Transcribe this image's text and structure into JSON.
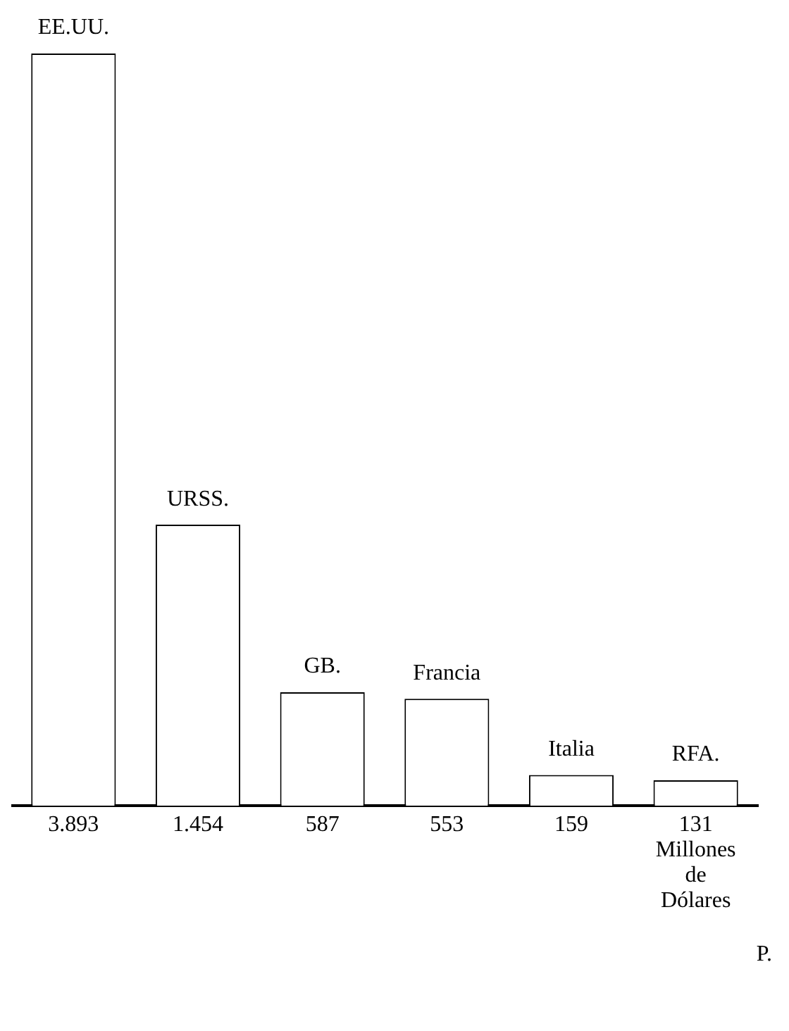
{
  "chart_data": {
    "type": "bar",
    "categories": [
      "EE.UU.",
      "URSS.",
      "GB.",
      "Francia",
      "Italia",
      "RFA."
    ],
    "values": [
      3893,
      1454,
      587,
      553,
      159,
      131
    ],
    "value_labels": [
      "3.893",
      "1.454",
      "587",
      "553",
      "159",
      "131"
    ],
    "color": "#ffffff",
    "xlabel": "Millones de Dólares",
    "annotations": [
      "P."
    ]
  }
}
